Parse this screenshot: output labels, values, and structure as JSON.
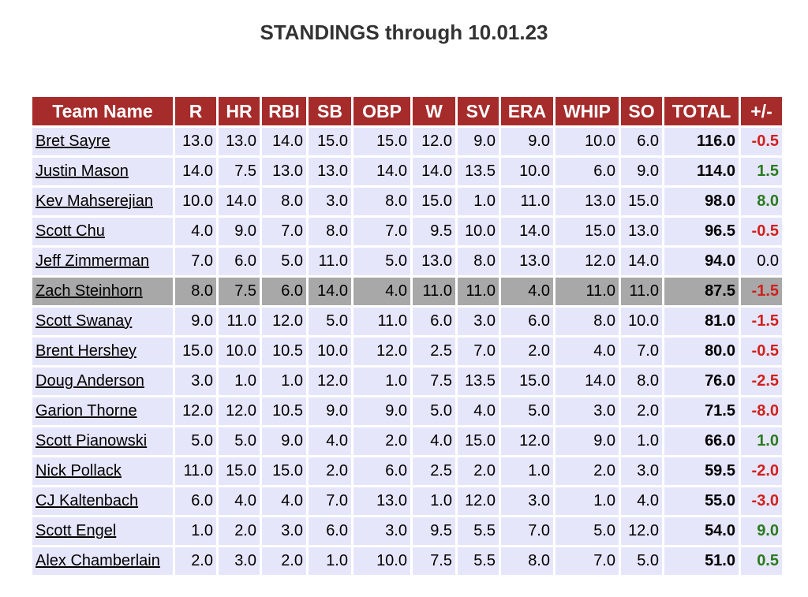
{
  "page": {
    "title": "STANDINGS through 10.01.23"
  },
  "colors": {
    "header_bg": "#a62b2b",
    "header_text": "#ffffff",
    "row_bg": "#e6e6fa",
    "highlight_row_bg": "#a8a8a8",
    "positive": "#2a7a1e",
    "negative": "#d0201c"
  },
  "table": {
    "headers": [
      "Team Name",
      "R",
      "HR",
      "RBI",
      "SB",
      "OBP",
      "W",
      "SV",
      "ERA",
      "WHIP",
      "SO",
      "TOTAL",
      "+/-"
    ],
    "highlighted_team": "Zach Steinhorn",
    "rows": [
      {
        "team": "Bret Sayre",
        "stats": [
          "13.0",
          "13.0",
          "14.0",
          "15.0",
          "15.0",
          "12.0",
          "9.0",
          "9.0",
          "10.0",
          "6.0"
        ],
        "total": "116.0",
        "delta": "-0.5",
        "sign": "neg"
      },
      {
        "team": "Justin Mason",
        "stats": [
          "14.0",
          "7.5",
          "13.0",
          "13.0",
          "14.0",
          "14.0",
          "13.5",
          "10.0",
          "6.0",
          "9.0"
        ],
        "total": "114.0",
        "delta": "1.5",
        "sign": "pos"
      },
      {
        "team": "Kev Mahserejian",
        "stats": [
          "10.0",
          "14.0",
          "8.0",
          "3.0",
          "8.0",
          "15.0",
          "1.0",
          "11.0",
          "13.0",
          "15.0"
        ],
        "total": "98.0",
        "delta": "8.0",
        "sign": "pos"
      },
      {
        "team": "Scott Chu",
        "stats": [
          "4.0",
          "9.0",
          "7.0",
          "8.0",
          "7.0",
          "9.5",
          "10.0",
          "14.0",
          "15.0",
          "13.0"
        ],
        "total": "96.5",
        "delta": "-0.5",
        "sign": "neg"
      },
      {
        "team": "Jeff Zimmerman",
        "stats": [
          "7.0",
          "6.0",
          "5.0",
          "11.0",
          "5.0",
          "13.0",
          "8.0",
          "13.0",
          "12.0",
          "14.0"
        ],
        "total": "94.0",
        "delta": "0.0",
        "sign": "zero"
      },
      {
        "team": "Zach Steinhorn",
        "stats": [
          "8.0",
          "7.5",
          "6.0",
          "14.0",
          "4.0",
          "11.0",
          "11.0",
          "4.0",
          "11.0",
          "11.0"
        ],
        "total": "87.5",
        "delta": "-1.5",
        "sign": "neg"
      },
      {
        "team": "Scott Swanay",
        "stats": [
          "9.0",
          "11.0",
          "12.0",
          "5.0",
          "11.0",
          "6.0",
          "3.0",
          "6.0",
          "8.0",
          "10.0"
        ],
        "total": "81.0",
        "delta": "-1.5",
        "sign": "neg"
      },
      {
        "team": "Brent Hershey",
        "stats": [
          "15.0",
          "10.0",
          "10.5",
          "10.0",
          "12.0",
          "2.5",
          "7.0",
          "2.0",
          "4.0",
          "7.0"
        ],
        "total": "80.0",
        "delta": "-0.5",
        "sign": "neg"
      },
      {
        "team": "Doug Anderson",
        "stats": [
          "3.0",
          "1.0",
          "1.0",
          "12.0",
          "1.0",
          "7.5",
          "13.5",
          "15.0",
          "14.0",
          "8.0"
        ],
        "total": "76.0",
        "delta": "-2.5",
        "sign": "neg"
      },
      {
        "team": "Garion Thorne",
        "stats": [
          "12.0",
          "12.0",
          "10.5",
          "9.0",
          "9.0",
          "5.0",
          "4.0",
          "5.0",
          "3.0",
          "2.0"
        ],
        "total": "71.5",
        "delta": "-8.0",
        "sign": "neg"
      },
      {
        "team": "Scott Pianowski",
        "stats": [
          "5.0",
          "5.0",
          "9.0",
          "4.0",
          "2.0",
          "4.0",
          "15.0",
          "12.0",
          "9.0",
          "1.0"
        ],
        "total": "66.0",
        "delta": "1.0",
        "sign": "pos"
      },
      {
        "team": "Nick Pollack",
        "stats": [
          "11.0",
          "15.0",
          "15.0",
          "2.0",
          "6.0",
          "2.5",
          "2.0",
          "1.0",
          "2.0",
          "3.0"
        ],
        "total": "59.5",
        "delta": "-2.0",
        "sign": "neg"
      },
      {
        "team": "CJ Kaltenbach",
        "stats": [
          "6.0",
          "4.0",
          "4.0",
          "7.0",
          "13.0",
          "1.0",
          "12.0",
          "3.0",
          "1.0",
          "4.0"
        ],
        "total": "55.0",
        "delta": "-3.0",
        "sign": "neg"
      },
      {
        "team": "Scott Engel",
        "stats": [
          "1.0",
          "2.0",
          "3.0",
          "6.0",
          "3.0",
          "9.5",
          "5.5",
          "7.0",
          "5.0",
          "12.0"
        ],
        "total": "54.0",
        "delta": "9.0",
        "sign": "pos"
      },
      {
        "team": "Alex Chamberlain",
        "stats": [
          "2.0",
          "3.0",
          "2.0",
          "1.0",
          "10.0",
          "7.5",
          "5.5",
          "8.0",
          "7.0",
          "5.0"
        ],
        "total": "51.0",
        "delta": "0.5",
        "sign": "pos"
      }
    ]
  }
}
